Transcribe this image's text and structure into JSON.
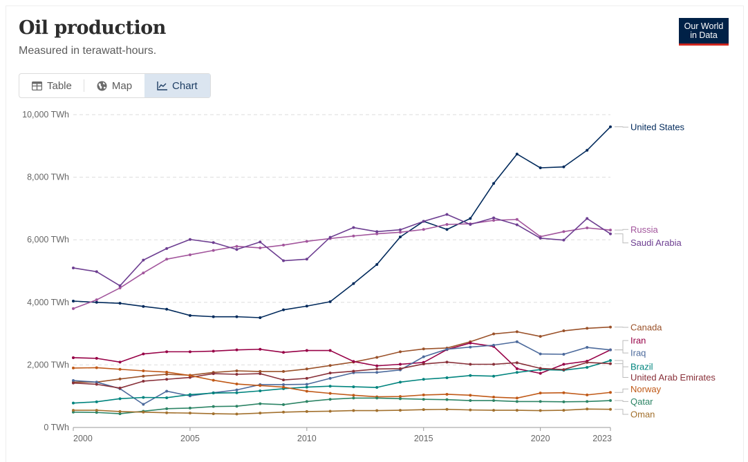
{
  "header": {
    "title": "Oil production",
    "subtitle": "Measured in terawatt-hours.",
    "logo_line1": "Our World",
    "logo_line2": "in Data"
  },
  "tabs": [
    {
      "label": "Table",
      "icon": "table-icon",
      "active": false
    },
    {
      "label": "Map",
      "icon": "globe-icon",
      "active": false
    },
    {
      "label": "Chart",
      "icon": "line-chart-icon",
      "active": true
    }
  ],
  "colors": {
    "brand": "#002147",
    "brand_accent": "#ce261e",
    "active_tab_bg": "#dbe5f0"
  },
  "chart_data": {
    "type": "line",
    "title": "Oil production",
    "subtitle": "Measured in terawatt-hours.",
    "xlabel": "",
    "ylabel": "",
    "x": [
      2000,
      2001,
      2002,
      2003,
      2004,
      2005,
      2006,
      2007,
      2008,
      2009,
      2010,
      2011,
      2012,
      2013,
      2014,
      2015,
      2016,
      2017,
      2018,
      2019,
      2020,
      2021,
      2022,
      2023
    ],
    "xlim": [
      2000,
      2023
    ],
    "ylim": [
      0,
      10000
    ],
    "y_ticks": [
      0,
      2000,
      4000,
      6000,
      8000,
      10000
    ],
    "y_tick_labels": [
      "0 TWh",
      "2,000 TWh",
      "4,000 TWh",
      "6,000 TWh",
      "8,000 TWh",
      "10,000 TWh"
    ],
    "x_ticks": [
      2000,
      2005,
      2010,
      2015,
      2020,
      2023
    ],
    "x_tick_labels": [
      "2000",
      "2005",
      "2010",
      "2015",
      "2020",
      "2023"
    ],
    "grid": "horizontal-dashed",
    "legend": "right-end-labels",
    "series": [
      {
        "name": "United States",
        "color": "#00295b",
        "label_y": 9600,
        "values": [
          4040,
          4000,
          3970,
          3870,
          3780,
          3580,
          3540,
          3540,
          3510,
          3760,
          3880,
          4020,
          4600,
          5210,
          6090,
          6590,
          6330,
          6680,
          7800,
          8740,
          8300,
          8330,
          8860,
          9610
        ]
      },
      {
        "name": "Russia",
        "color": "#a2559c",
        "label_y": 6330,
        "values": [
          3800,
          4080,
          4460,
          4940,
          5380,
          5520,
          5660,
          5790,
          5740,
          5830,
          5950,
          6040,
          6120,
          6190,
          6240,
          6330,
          6490,
          6510,
          6620,
          6650,
          6100,
          6260,
          6380,
          6310
        ]
      },
      {
        "name": "Saudi Arabia",
        "color": "#6d3e91",
        "label_y": 5900,
        "values": [
          5100,
          4980,
          4530,
          5350,
          5720,
          6010,
          5910,
          5690,
          5930,
          5330,
          5380,
          6080,
          6390,
          6260,
          6320,
          6590,
          6810,
          6490,
          6700,
          6480,
          6050,
          5990,
          6680,
          6190
        ]
      },
      {
        "name": "Canada",
        "color": "#9a5129",
        "label_y": 3200,
        "values": [
          1450,
          1450,
          1550,
          1640,
          1700,
          1670,
          1760,
          1810,
          1790,
          1790,
          1870,
          1980,
          2090,
          2240,
          2420,
          2510,
          2540,
          2740,
          2990,
          3060,
          2910,
          3090,
          3170,
          3210
        ]
      },
      {
        "name": "Iran",
        "color": "#970046",
        "label_y": 2780,
        "values": [
          2230,
          2210,
          2090,
          2350,
          2420,
          2420,
          2440,
          2480,
          2500,
          2400,
          2460,
          2460,
          2110,
          1970,
          2020,
          2080,
          2490,
          2700,
          2590,
          1880,
          1730,
          2020,
          2120,
          2480
        ]
      },
      {
        "name": "Iraq",
        "color": "#4c6a9c",
        "label_y": 2380,
        "values": [
          1500,
          1450,
          1240,
          740,
          1160,
          1010,
          1110,
          1200,
          1370,
          1370,
          1380,
          1570,
          1750,
          1760,
          1840,
          2260,
          2500,
          2570,
          2630,
          2740,
          2350,
          2340,
          2560,
          2480
        ]
      },
      {
        "name": "Brazil",
        "color": "#00847e",
        "label_y": 1940,
        "values": [
          780,
          820,
          920,
          960,
          950,
          1050,
          1100,
          1110,
          1170,
          1240,
          1290,
          1320,
          1300,
          1280,
          1450,
          1540,
          1590,
          1660,
          1640,
          1760,
          1850,
          1830,
          1920,
          2140
        ]
      },
      {
        "name": "United Arab Emirates",
        "color": "#883039",
        "label_y": 1600,
        "values": [
          1420,
          1380,
          1260,
          1480,
          1540,
          1600,
          1720,
          1700,
          1720,
          1520,
          1570,
          1740,
          1800,
          1870,
          1880,
          2030,
          2090,
          2020,
          2020,
          2070,
          1890,
          1850,
          2080,
          2040
        ]
      },
      {
        "name": "Norway",
        "color": "#c05917",
        "label_y": 1230,
        "values": [
          1900,
          1910,
          1860,
          1810,
          1770,
          1660,
          1510,
          1390,
          1340,
          1290,
          1160,
          1090,
          1030,
          980,
          990,
          1040,
          1060,
          1030,
          970,
          940,
          1100,
          1110,
          1040,
          1120
        ]
      },
      {
        "name": "Qatar",
        "color": "#2c8465",
        "label_y": 830,
        "values": [
          490,
          480,
          440,
          520,
          600,
          620,
          670,
          680,
          760,
          730,
          830,
          900,
          940,
          940,
          920,
          900,
          890,
          860,
          860,
          830,
          830,
          820,
          830,
          860
        ]
      },
      {
        "name": "Oman",
        "color": "#a2702d",
        "label_y": 420,
        "values": [
          550,
          550,
          510,
          490,
          470,
          460,
          440,
          430,
          460,
          490,
          510,
          520,
          540,
          540,
          550,
          570,
          580,
          560,
          550,
          550,
          540,
          550,
          590,
          580
        ]
      }
    ]
  }
}
